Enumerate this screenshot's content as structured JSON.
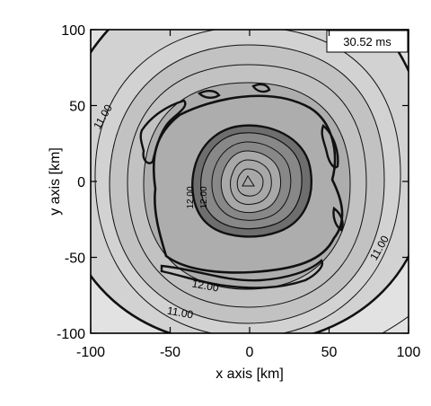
{
  "chart_data": {
    "type": "contour",
    "xlabel": "x axis [km]",
    "ylabel": "y axis [km]",
    "xlim": [
      -100,
      100
    ],
    "ylim": [
      -100,
      100
    ],
    "x_ticks": [
      "-100",
      "-50",
      "0",
      "50",
      "100"
    ],
    "y_ticks": [
      "-100",
      "-50",
      "0",
      "50",
      "100"
    ],
    "time_label": "30.52 ms",
    "contour_labels": [
      "11.00",
      "11.00",
      "11.00",
      "11.00",
      "12.00",
      "12.00",
      "12.00"
    ],
    "palette": {
      "outer": "#e2e2e2",
      "ring2": "#d2d2d2",
      "ring3": "#c2c2c2",
      "plateau": "#adadad",
      "core_edge": "#6e6e6e",
      "core_mid": "#888888",
      "core_center": "#a8a8a8",
      "line": "#111111"
    }
  }
}
